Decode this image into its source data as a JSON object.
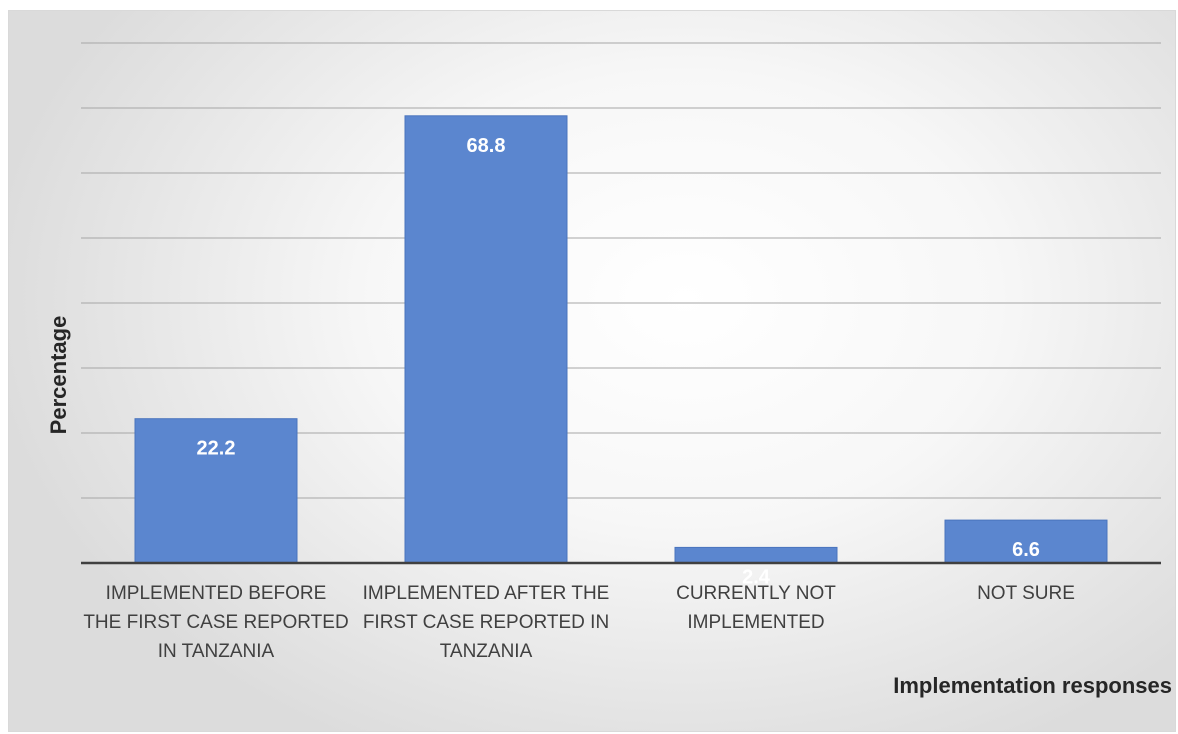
{
  "chart_data": {
    "type": "bar",
    "title": "",
    "xlabel": "Implementation responses",
    "ylabel": "Percentage",
    "categories": [
      "IMPLEMENTED BEFORE THE FIRST CASE REPORTED IN TANZANIA",
      "IMPLEMENTED AFTER THE FIRST CASE REPORTED IN TANZANIA",
      "CURRENTLY NOT IMPLEMENTED",
      "NOT SURE"
    ],
    "category_lines": [
      [
        "IMPLEMENTED BEFORE",
        "THE FIRST CASE REPORTED",
        "IN TANZANIA"
      ],
      [
        "IMPLEMENTED AFTER THE",
        "FIRST CASE REPORTED IN",
        "TANZANIA"
      ],
      [
        "CURRENTLY NOT",
        "IMPLEMENTED"
      ],
      [
        "NOT SURE"
      ]
    ],
    "values": [
      22.2,
      68.8,
      2.4,
      6.6
    ],
    "data_labels": [
      "22.2",
      "68.8",
      "2.4",
      "6.6"
    ],
    "ylim": [
      0,
      80
    ],
    "grid": true,
    "legend": "none",
    "bar_color": "#5b86cf"
  }
}
